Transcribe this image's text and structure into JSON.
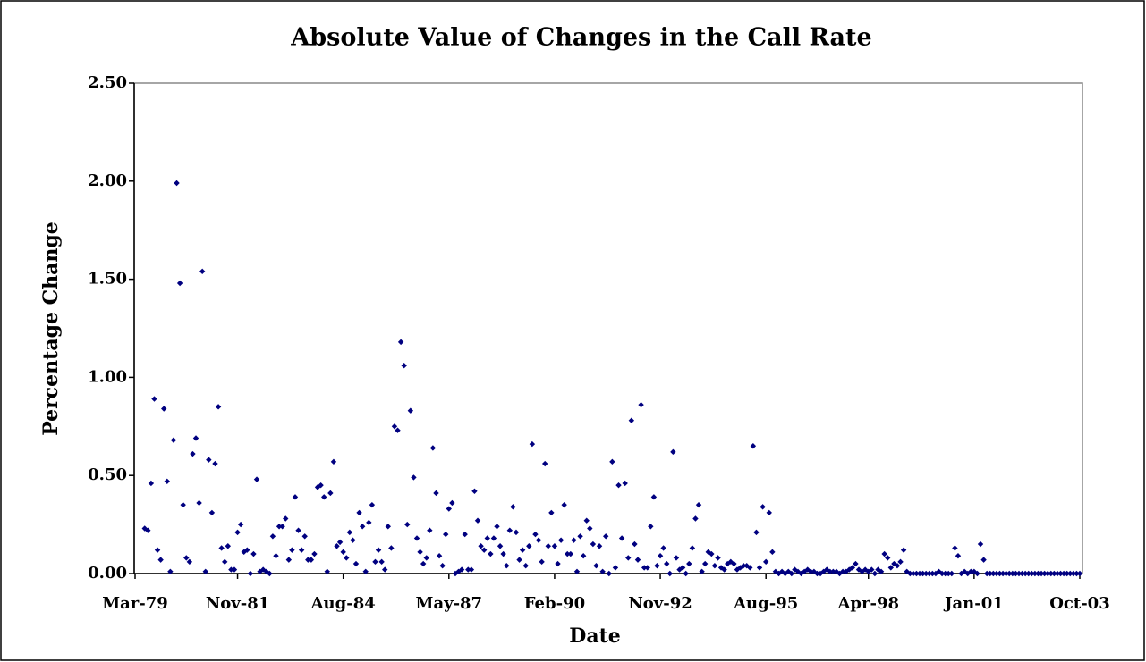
{
  "chart_data": {
    "type": "scatter",
    "title": "Absolute Value of Changes in the Call Rate",
    "x_label": "Date",
    "y_label": "Percentage Change",
    "color": "#000080",
    "ylim": [
      0,
      2.5
    ],
    "yticks": [
      {
        "value": 0,
        "label": "0.00"
      },
      {
        "value": 0.5,
        "label": "0.50"
      },
      {
        "value": 1,
        "label": "1.00"
      },
      {
        "value": 1.5,
        "label": "1.50"
      },
      {
        "value": 2,
        "label": "2.00"
      },
      {
        "value": 2.5,
        "label": "2.50"
      }
    ],
    "categories": [
      "Mar-79",
      null,
      null,
      null,
      null,
      null,
      null,
      null,
      null,
      null,
      null,
      null,
      null,
      null,
      null,
      null,
      null,
      null,
      null,
      null,
      null,
      null,
      null,
      null,
      null,
      null,
      null,
      null,
      null,
      null,
      null,
      null,
      "Nov-81",
      null,
      null,
      null,
      null,
      null,
      null,
      null,
      null,
      null,
      null,
      null,
      null,
      null,
      null,
      null,
      null,
      null,
      null,
      null,
      null,
      null,
      null,
      null,
      null,
      null,
      null,
      null,
      null,
      null,
      null,
      null,
      null,
      "Aug-84",
      null,
      null,
      null,
      null,
      null,
      null,
      null,
      null,
      null,
      null,
      null,
      null,
      null,
      null,
      null,
      null,
      null,
      null,
      null,
      null,
      null,
      null,
      null,
      null,
      null,
      null,
      null,
      null,
      null,
      null,
      null,
      null,
      "May-87",
      null,
      null,
      null,
      null,
      null,
      null,
      null,
      null,
      null,
      null,
      null,
      null,
      null,
      null,
      null,
      null,
      null,
      null,
      null,
      null,
      null,
      null,
      null,
      null,
      null,
      null,
      null,
      null,
      null,
      null,
      null,
      null,
      "Feb-90",
      null,
      null,
      null,
      null,
      null,
      null,
      null,
      null,
      null,
      null,
      null,
      null,
      null,
      null,
      null,
      null,
      null,
      null,
      null,
      null,
      null,
      null,
      null,
      null,
      null,
      null,
      null,
      null,
      null,
      null,
      null,
      null,
      "Nov-92",
      null,
      null,
      null,
      null,
      null,
      null,
      null,
      null,
      null,
      null,
      null,
      null,
      null,
      null,
      null,
      null,
      null,
      null,
      null,
      null,
      null,
      null,
      null,
      null,
      null,
      null,
      null,
      null,
      null,
      null,
      null,
      null,
      "Aug-95",
      null,
      null,
      null,
      null,
      null,
      null,
      null,
      null,
      null,
      null,
      null,
      null,
      null,
      null,
      null,
      null,
      null,
      null,
      null,
      null,
      null,
      null,
      null,
      null,
      null,
      null,
      null,
      null,
      null,
      null,
      null,
      "Apr-98",
      null,
      null,
      null,
      null,
      null,
      null,
      null,
      null,
      null,
      null,
      null,
      null,
      null,
      null,
      null,
      null,
      null,
      null,
      null,
      null,
      null,
      null,
      null,
      null,
      null,
      null,
      null,
      null,
      null,
      null,
      null,
      null,
      "Jan-01",
      null,
      null,
      null,
      null,
      null,
      null,
      null,
      null,
      null,
      null,
      null,
      null,
      null,
      null,
      null,
      null,
      null,
      null,
      null,
      null,
      null,
      null,
      null,
      null,
      null,
      null,
      null,
      null,
      null,
      null,
      null,
      null,
      "Oct-03"
    ],
    "values": [
      null,
      null,
      null,
      0.23,
      0.22,
      0.46,
      0.89,
      0.12,
      0.07,
      0.84,
      0.47,
      0.01,
      0.68,
      1.99,
      1.48,
      0.35,
      0.08,
      0.06,
      0.61,
      0.69,
      0.36,
      1.54,
      0.01,
      0.58,
      0.31,
      0.56,
      0.85,
      0.13,
      0.06,
      0.14,
      0.02,
      0.02,
      0.21,
      0.25,
      0.11,
      0.12,
      0,
      0.1,
      0.48,
      0.01,
      0.02,
      0.01,
      0,
      0.19,
      0.09,
      0.24,
      0.24,
      0.28,
      0.07,
      0.12,
      0.39,
      0.22,
      0.12,
      0.19,
      0.07,
      0.07,
      0.1,
      0.44,
      0.45,
      0.39,
      0.01,
      0.41,
      0.57,
      0.14,
      0.16,
      0.11,
      0.08,
      0.21,
      0.17,
      0.05,
      0.31,
      0.24,
      0.01,
      0.26,
      0.35,
      0.06,
      0.12,
      0.06,
      0.02,
      0.24,
      0.13,
      0.75,
      0.73,
      1.18,
      1.06,
      0.25,
      0.83,
      0.49,
      0.18,
      0.11,
      0.05,
      0.08,
      0.22,
      0.64,
      0.41,
      0.09,
      0.04,
      0.2,
      0.33,
      0.36,
      0,
      0.01,
      0.02,
      0.2,
      0.02,
      0.02,
      0.42,
      0.27,
      0.14,
      0.12,
      0.18,
      0.1,
      0.18,
      0.24,
      0.14,
      0.1,
      0.04,
      0.22,
      0.34,
      0.21,
      0.07,
      0.12,
      0.04,
      0.14,
      0.66,
      0.2,
      0.17,
      0.06,
      0.56,
      0.14,
      0.31,
      0.14,
      0.05,
      0.17,
      0.35,
      0.1,
      0.1,
      0.17,
      0.01,
      0.19,
      0.09,
      0.27,
      0.23,
      0.15,
      0.04,
      0.14,
      0.01,
      0.19,
      0,
      0.57,
      0.03,
      0.45,
      0.18,
      0.46,
      0.08,
      0.78,
      0.15,
      0.07,
      0.86,
      0.03,
      0.03,
      0.24,
      0.39,
      0.04,
      0.09,
      0.13,
      0.05,
      0,
      0.62,
      0.08,
      0.02,
      0.03,
      0,
      0.05,
      0.13,
      0.28,
      0.35,
      0.01,
      0.05,
      0.11,
      0.1,
      0.04,
      0.08,
      0.03,
      0.02,
      0.05,
      0.06,
      0.05,
      0.02,
      0.03,
      0.04,
      0.04,
      0.03,
      0.65,
      0.21,
      0.03,
      0.34,
      0.06,
      0.31,
      0.11,
      0.01,
      0,
      0.01,
      0,
      0.01,
      0,
      0.02,
      0.01,
      0,
      0.01,
      0.02,
      0.01,
      0.01,
      0,
      0,
      0.01,
      0.02,
      0.01,
      0.01,
      0.01,
      0,
      0.01,
      0.01,
      0.02,
      0.03,
      0.05,
      0.02,
      0.01,
      0.02,
      0.01,
      0.02,
      0,
      0.02,
      0.01,
      0.1,
      0.08,
      0.03,
      0.05,
      0.04,
      0.06,
      0.12,
      0.01,
      0,
      0,
      0,
      0,
      0,
      0,
      0,
      0,
      0,
      0.01,
      0,
      0,
      0,
      0,
      0.13,
      0.09,
      0,
      0.01,
      0,
      0.01,
      0.01,
      0,
      0.15,
      0.07,
      0,
      0,
      0,
      0,
      0,
      0,
      0,
      0,
      0,
      0,
      0,
      0,
      0,
      0,
      0,
      0,
      0,
      0,
      0,
      0,
      0,
      0,
      0,
      0,
      0,
      0,
      0,
      0,
      0,
      0
    ]
  }
}
